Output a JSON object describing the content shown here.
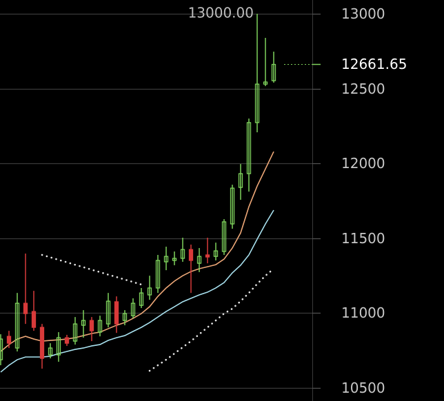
{
  "chart_data": {
    "type": "candlestick",
    "open": [
      10689,
      10845,
      10767,
      11066,
      11011,
      10905,
      10721,
      10721,
      10836,
      10813,
      10919,
      10951,
      10873,
      10928,
      11076,
      10951,
      10983,
      11052,
      11122,
      11168,
      11343,
      11352,
      11366,
      11425,
      11333,
      11389,
      11379,
      11412,
      11596,
      11840,
      11932,
      12273,
      12530,
      12553
    ],
    "high": [
      10859,
      10882,
      11135,
      11398,
      11149,
      10928,
      10799,
      10873,
      10855,
      10974,
      11020,
      10974,
      10983,
      11135,
      11112,
      11020,
      11099,
      11168,
      11250,
      11389,
      11444,
      11412,
      11504,
      11458,
      11435,
      11504,
      11471,
      11628,
      11858,
      11996,
      12300,
      13000,
      12839,
      12747
    ],
    "low": [
      10652,
      10767,
      10744,
      10928,
      10882,
      10629,
      10698,
      10675,
      10781,
      10790,
      10836,
      10813,
      10845,
      10905,
      10868,
      10919,
      10965,
      11034,
      11089,
      11135,
      11287,
      11320,
      11343,
      11135,
      11274,
      11333,
      11352,
      11389,
      11564,
      11757,
      11812,
      12208,
      12517,
      12540
    ],
    "close": [
      10827,
      10799,
      11066,
      10997,
      10905,
      10698,
      10767,
      10836,
      10799,
      10928,
      10951,
      10882,
      10951,
      11080,
      10928,
      10997,
      11066,
      11135,
      11168,
      11352,
      11379,
      11366,
      11425,
      11352,
      11379,
      11375,
      11416,
      11610,
      11835,
      11932,
      12273,
      12530,
      12544,
      12661.65
    ],
    "up_color": "#7fd35c",
    "down_color": "#d83a3a",
    "overlays": [
      {
        "color": "#eea878",
        "values": [
          10744,
          10790,
          10827,
          10845,
          10827,
          10813,
          10818,
          10822,
          10827,
          10836,
          10850,
          10864,
          10873,
          10896,
          10919,
          10937,
          10965,
          10997,
          11043,
          11112,
          11168,
          11214,
          11250,
          11278,
          11297,
          11310,
          11324,
          11361,
          11435,
          11536,
          11711,
          11849,
          11964,
          12079
        ]
      },
      {
        "color": "#a9e2f0",
        "values": [
          10606,
          10652,
          10689,
          10707,
          10707,
          10707,
          10712,
          10730,
          10744,
          10758,
          10767,
          10781,
          10790,
          10818,
          10836,
          10850,
          10878,
          10905,
          10937,
          10974,
          11011,
          11043,
          11076,
          11099,
          11122,
          11140,
          11168,
          11204,
          11269,
          11320,
          11389,
          11494,
          11596,
          11688
        ]
      }
    ],
    "sar_color": "#e6e6e6",
    "sar": [
      {
        "values": [
          null,
          null,
          null,
          null,
          null,
          11389,
          11373,
          11356,
          11340,
          11323,
          11307,
          11290,
          11274,
          11257,
          11241,
          11224,
          11208,
          11191,
          null,
          null,
          null,
          null,
          null,
          null,
          null,
          null,
          null,
          null,
          null,
          null,
          null,
          null,
          null,
          null
        ]
      },
      {
        "values": [
          null,
          null,
          null,
          null,
          null,
          null,
          null,
          null,
          null,
          null,
          null,
          null,
          null,
          null,
          null,
          null,
          null,
          null,
          10615,
          10652,
          10689,
          10730,
          10772,
          10813,
          10859,
          10905,
          10951,
          10997,
          11030,
          11080,
          11135,
          11195,
          11250,
          11297
        ]
      }
    ],
    "ylim": [
      10413,
      13092
    ],
    "yticks": [
      10500,
      11000,
      11500,
      12000,
      12500,
      13000
    ],
    "grid": true,
    "high_label": {
      "value": 13000,
      "label": "13000.00"
    },
    "last_price": 12661.65
  }
}
